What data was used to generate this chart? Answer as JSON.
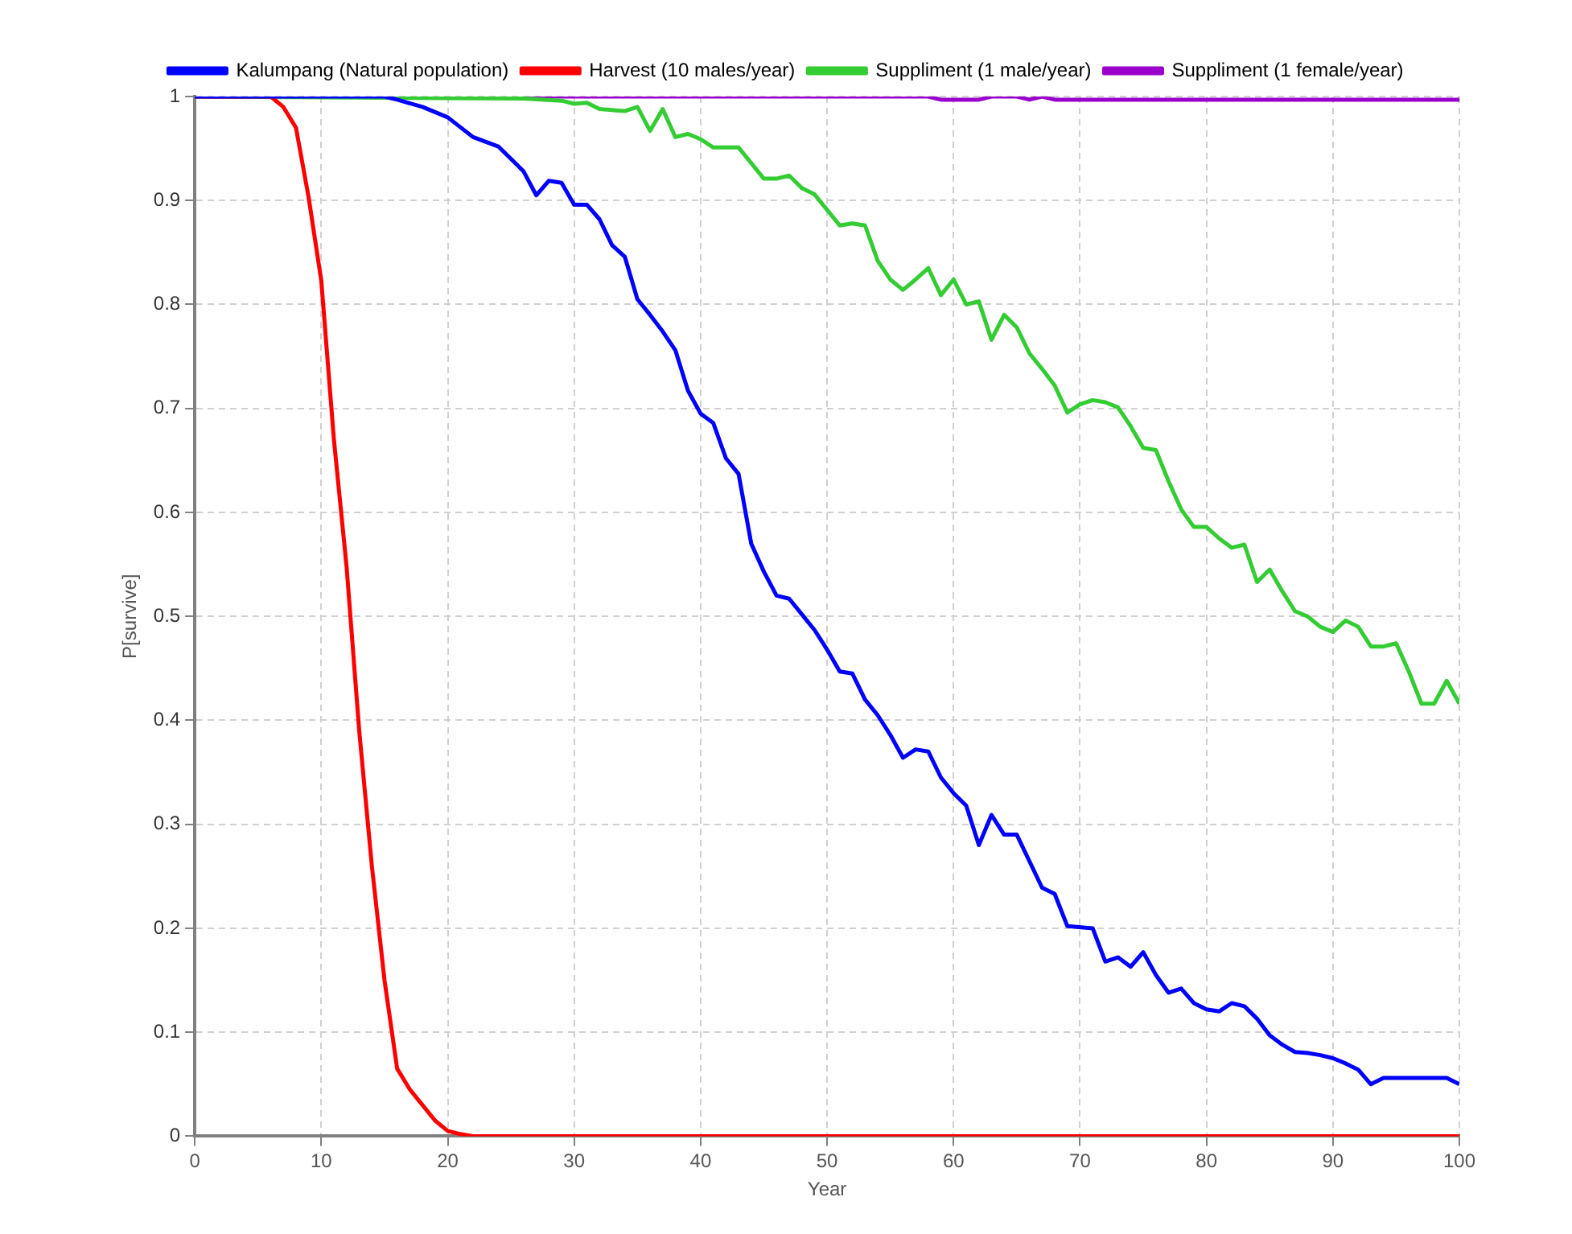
{
  "chart_data": {
    "type": "line",
    "xlabel": "Year",
    "ylabel": "P[survive]",
    "xlim": [
      0,
      100
    ],
    "xticks": [
      0,
      10,
      20,
      30,
      40,
      50,
      60,
      70,
      80,
      90,
      100
    ],
    "ylim": [
      0,
      1
    ],
    "yticks": [
      0,
      0.1,
      0.2,
      0.3,
      0.4,
      0.5,
      0.6,
      0.7,
      0.8,
      0.9,
      1
    ],
    "grid": true,
    "legend": "top",
    "marker": "none",
    "line_style": "solid",
    "series": [
      {
        "name": "Kalumpang (Natural population)",
        "color": "#0000ff",
        "x": [
          0,
          15,
          16,
          18,
          20,
          22,
          24,
          26,
          27,
          28,
          29,
          30,
          31,
          32,
          33,
          34,
          35,
          36,
          37,
          38,
          39,
          40,
          41,
          42,
          43,
          44,
          45,
          46,
          47,
          48,
          49,
          50,
          51,
          52,
          53,
          54,
          55,
          56,
          57,
          58,
          59,
          60,
          61,
          62,
          63,
          64,
          65,
          67,
          68,
          69,
          71,
          72,
          73,
          74,
          75,
          76,
          77,
          78,
          79,
          80,
          81,
          82,
          83,
          84,
          85,
          86,
          87,
          88,
          89,
          90,
          91,
          92,
          93,
          94,
          98,
          99,
          100
        ],
        "values": [
          1,
          1,
          0.997,
          0.99,
          0.98,
          0.961,
          0.952,
          0.928,
          0.905,
          0.919,
          0.917,
          0.896,
          0.896,
          0.882,
          0.857,
          0.846,
          0.805,
          0.79,
          0.774,
          0.756,
          0.717,
          0.695,
          0.686,
          0.652,
          0.637,
          0.57,
          0.543,
          0.52,
          0.517,
          0.502,
          0.487,
          0.468,
          0.447,
          0.445,
          0.42,
          0.405,
          0.386,
          0.364,
          0.372,
          0.37,
          0.345,
          0.33,
          0.318,
          0.28,
          0.309,
          0.29,
          0.29,
          0.239,
          0.233,
          0.202,
          0.2,
          0.168,
          0.172,
          0.163,
          0.177,
          0.155,
          0.138,
          0.142,
          0.128,
          0.122,
          0.12,
          0.128,
          0.125,
          0.113,
          0.097,
          0.088,
          0.081,
          0.08,
          0.078,
          0.075,
          0.07,
          0.064,
          0.05,
          0.056,
          0.056,
          0.056,
          0.05
        ]
      },
      {
        "name": "Harvest (10 males/year)",
        "color": "#ff0000",
        "x": [
          0,
          6,
          7,
          8,
          9,
          10,
          11,
          12,
          13,
          14,
          15,
          16,
          17,
          18,
          19,
          20,
          21,
          22,
          100
        ],
        "values": [
          1,
          1,
          0.99,
          0.97,
          0.903,
          0.823,
          0.67,
          0.548,
          0.39,
          0.26,
          0.15,
          0.065,
          0.045,
          0.03,
          0.015,
          0.005,
          0.002,
          0,
          0
        ]
      },
      {
        "name": "Suppliment (1 male/year)",
        "color": "#33cc33",
        "x": [
          0,
          26,
          29,
          30,
          31,
          32,
          34,
          35,
          36,
          37,
          38,
          39,
          40,
          41,
          43,
          45,
          46,
          47,
          48,
          49,
          50,
          51,
          52,
          53,
          54,
          55,
          56,
          57,
          58,
          59,
          60,
          61,
          62,
          63,
          64,
          65,
          66,
          67,
          68,
          69,
          70,
          71,
          72,
          73,
          74,
          75,
          76,
          77,
          78,
          79,
          80,
          81,
          82,
          83,
          84,
          85,
          86,
          87,
          88,
          89,
          90,
          91,
          92,
          93,
          94,
          95,
          96,
          97,
          98,
          99,
          100
        ],
        "values": [
          1,
          0.998,
          0.996,
          0.993,
          0.994,
          0.988,
          0.986,
          0.99,
          0.967,
          0.988,
          0.961,
          0.964,
          0.959,
          0.951,
          0.951,
          0.921,
          0.921,
          0.924,
          0.912,
          0.906,
          0.891,
          0.876,
          0.878,
          0.876,
          0.842,
          0.824,
          0.814,
          0.824,
          0.835,
          0.809,
          0.824,
          0.8,
          0.803,
          0.766,
          0.79,
          0.778,
          0.753,
          0.738,
          0.722,
          0.696,
          0.704,
          0.708,
          0.706,
          0.701,
          0.683,
          0.662,
          0.66,
          0.63,
          0.603,
          0.586,
          0.586,
          0.575,
          0.566,
          0.569,
          0.533,
          0.545,
          0.524,
          0.505,
          0.5,
          0.49,
          0.485,
          0.496,
          0.49,
          0.471,
          0.471,
          0.474,
          0.447,
          0.416,
          0.416,
          0.438,
          0.416
        ]
      },
      {
        "name": "Suppliment (1 female/year)",
        "color": "#9900cc",
        "x": [
          0,
          58,
          59,
          62,
          63,
          65,
          66,
          67,
          68,
          100
        ],
        "values": [
          1,
          1,
          0.997,
          0.997,
          1,
          1,
          0.997,
          1,
          0.997,
          0.997
        ]
      }
    ]
  }
}
